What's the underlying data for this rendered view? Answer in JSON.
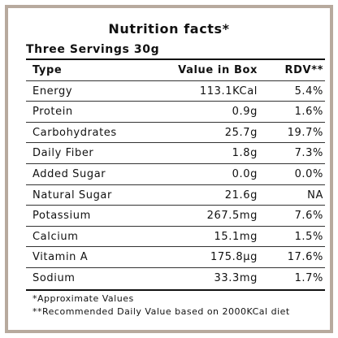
{
  "title": "Nutrition facts*",
  "subtitle": "Three Servings 30g",
  "columns": {
    "type": "Type",
    "value": "Value in Box",
    "rdv": "RDV**"
  },
  "rows": [
    {
      "type": "Energy",
      "value": "113.1KCal",
      "rdv": "5.4%"
    },
    {
      "type": "Protein",
      "value": "0.9g",
      "rdv": "1.6%"
    },
    {
      "type": "Carbohydrates",
      "value": "25.7g",
      "rdv": "19.7%"
    },
    {
      "type": "Daily Fiber",
      "value": "1.8g",
      "rdv": "7.3%"
    },
    {
      "type": "Added Sugar",
      "value": "0.0g",
      "rdv": "0.0%"
    },
    {
      "type": "Natural Sugar",
      "value": "21.6g",
      "rdv": "NA"
    },
    {
      "type": "Potassium",
      "value": "267.5mg",
      "rdv": "7.6%"
    },
    {
      "type": "Calcium",
      "value": "15.1mg",
      "rdv": "1.5%"
    },
    {
      "type": "Vitamin A",
      "value": "175.8µg",
      "rdv": "17.6%"
    },
    {
      "type": "Sodium",
      "value": "33.3mg",
      "rdv": "1.7%"
    }
  ],
  "notes": [
    "*Approximate Values",
    "**Recommended Daily Value based on 2000KCal diet"
  ],
  "colors": {
    "border": "#b7aa9e",
    "text": "#111111"
  },
  "chart_data": {
    "type": "table",
    "title": "Nutrition facts*",
    "subtitle": "Three Servings 30g",
    "columns": [
      "Type",
      "Value in Box",
      "RDV**"
    ],
    "rows": [
      [
        "Energy",
        "113.1KCal",
        "5.4%"
      ],
      [
        "Protein",
        "0.9g",
        "1.6%"
      ],
      [
        "Carbohydrates",
        "25.7g",
        "19.7%"
      ],
      [
        "Daily Fiber",
        "1.8g",
        "7.3%"
      ],
      [
        "Added Sugar",
        "0.0g",
        "0.0%"
      ],
      [
        "Natural Sugar",
        "21.6g",
        "NA"
      ],
      [
        "Potassium",
        "267.5mg",
        "7.6%"
      ],
      [
        "Calcium",
        "15.1mg",
        "1.5%"
      ],
      [
        "Vitamin A",
        "175.8µg",
        "17.6%"
      ],
      [
        "Sodium",
        "33.3mg",
        "1.7%"
      ]
    ],
    "annotations": [
      "*Approximate Values",
      "**Recommended Daily Value based on 2000KCal diet"
    ]
  }
}
